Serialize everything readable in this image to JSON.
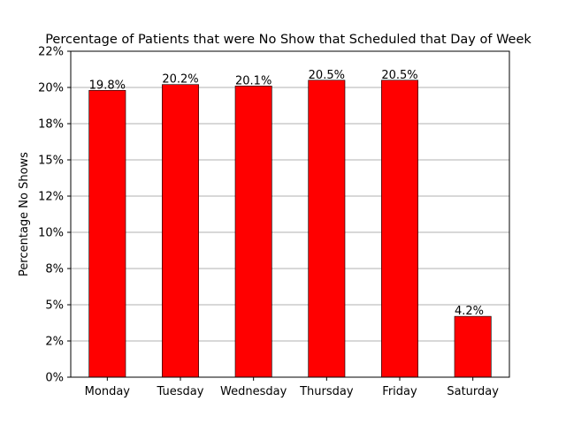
{
  "chart_data": {
    "type": "bar",
    "title": "Percentage of Patients that were No Show that Scheduled that Day of Week",
    "xlabel": "",
    "ylabel": "Percentage No Shows",
    "categories": [
      "Monday",
      "Tuesday",
      "Wednesday",
      "Thursday",
      "Friday",
      "Saturday"
    ],
    "values": [
      19.8,
      20.2,
      20.1,
      20.5,
      20.5,
      4.2
    ],
    "data_labels": [
      "19.8%",
      "20.2%",
      "20.1%",
      "20.5%",
      "20.5%",
      "4.2%"
    ],
    "ylim": [
      0,
      22.5
    ],
    "yticks": [
      0,
      2.5,
      5,
      7.5,
      10,
      12.5,
      15,
      17.5,
      20,
      22.5
    ],
    "ytick_labels": [
      "0%",
      "2%",
      "5%",
      "8%",
      "10%",
      "12%",
      "15%",
      "18%",
      "20%",
      "22%"
    ],
    "bar_color": "#ff0000",
    "bar_edge_color": "#000000",
    "grid": "y-axis horizontal lines",
    "grid_color": "#b0b0b0",
    "legend": "none"
  }
}
